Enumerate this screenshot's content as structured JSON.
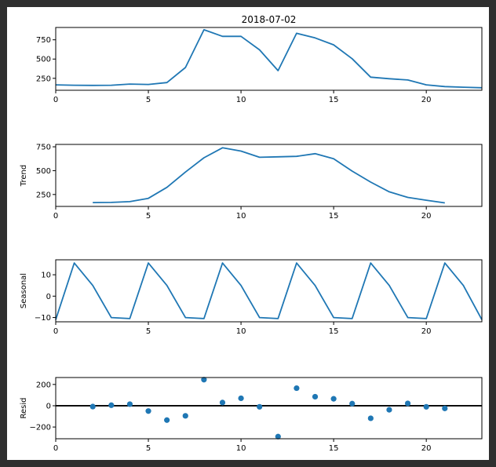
{
  "chart_data": [
    {
      "type": "line",
      "panel": "observed",
      "title": "2018-07-02",
      "ylabel": "",
      "x": [
        0,
        1,
        2,
        3,
        4,
        5,
        6,
        7,
        8,
        9,
        10,
        11,
        12,
        13,
        14,
        15,
        16,
        17,
        18,
        19,
        20,
        21,
        22,
        23
      ],
      "values": [
        165,
        160,
        158,
        160,
        175,
        170,
        195,
        390,
        880,
        795,
        795,
        620,
        350,
        835,
        775,
        685,
        505,
        265,
        245,
        228,
        165,
        143,
        135,
        128
      ],
      "xlim": [
        0,
        23
      ],
      "ylim": [
        95,
        910
      ],
      "xticks": [
        0,
        5,
        10,
        15,
        20
      ],
      "yticks": [
        250,
        500,
        750
      ],
      "ytick_labels": [
        "250",
        "500",
        "750"
      ],
      "grid": false
    },
    {
      "type": "line",
      "panel": "trend",
      "title": "",
      "ylabel": "Trend",
      "x": [
        2,
        3,
        4,
        5,
        6,
        7,
        8,
        9,
        10,
        11,
        12,
        13,
        14,
        15,
        16,
        17,
        18,
        19,
        20,
        21
      ],
      "values": [
        165,
        167,
        175,
        210,
        325,
        485,
        635,
        740,
        705,
        640,
        645,
        650,
        678,
        625,
        495,
        380,
        278,
        220,
        190,
        162
      ],
      "xlim": [
        0,
        23
      ],
      "ylim": [
        125,
        775
      ],
      "xticks": [
        0,
        5,
        10,
        15,
        20
      ],
      "yticks": [
        250,
        500,
        750
      ],
      "ytick_labels": [
        "250",
        "500",
        "750"
      ],
      "grid": false
    },
    {
      "type": "line",
      "panel": "seasonal",
      "title": "",
      "ylabel": "Seasonal",
      "x": [
        0,
        1,
        2,
        3,
        4,
        5,
        6,
        7,
        8,
        9,
        10,
        11,
        12,
        13,
        14,
        15,
        16,
        17,
        18,
        19,
        20,
        21,
        22,
        23
      ],
      "values": [
        -11,
        15.5,
        5,
        -10,
        -10.5,
        15.5,
        5,
        -10,
        -10.5,
        15.5,
        5,
        -10,
        -10.5,
        15.5,
        5,
        -10,
        -10.5,
        15.5,
        5,
        -10,
        -10.5,
        15.5,
        5,
        -11
      ],
      "xlim": [
        0,
        23
      ],
      "ylim": [
        -12,
        17
      ],
      "xticks": [
        0,
        5,
        10,
        15,
        20
      ],
      "yticks": [
        -10,
        0,
        10
      ],
      "ytick_labels": [
        "−10",
        "0",
        "10"
      ],
      "grid": false
    },
    {
      "type": "scatter",
      "panel": "resid",
      "title": "",
      "ylabel": "Resid",
      "x": [
        2,
        3,
        4,
        5,
        6,
        7,
        8,
        9,
        10,
        11,
        12,
        13,
        14,
        15,
        16,
        17,
        18,
        19,
        20,
        21
      ],
      "values": [
        -8,
        5,
        15,
        -50,
        -135,
        -95,
        245,
        30,
        70,
        -10,
        -290,
        165,
        85,
        65,
        20,
        -118,
        -38,
        22,
        -10,
        -25
      ],
      "xlim": [
        0,
        23
      ],
      "ylim": [
        -310,
        265
      ],
      "xticks": [
        0,
        5,
        10,
        15,
        20
      ],
      "yticks": [
        -200,
        0,
        200
      ],
      "ytick_labels": [
        "−200",
        "0",
        "200"
      ],
      "zero_line": true,
      "grid": false
    }
  ]
}
